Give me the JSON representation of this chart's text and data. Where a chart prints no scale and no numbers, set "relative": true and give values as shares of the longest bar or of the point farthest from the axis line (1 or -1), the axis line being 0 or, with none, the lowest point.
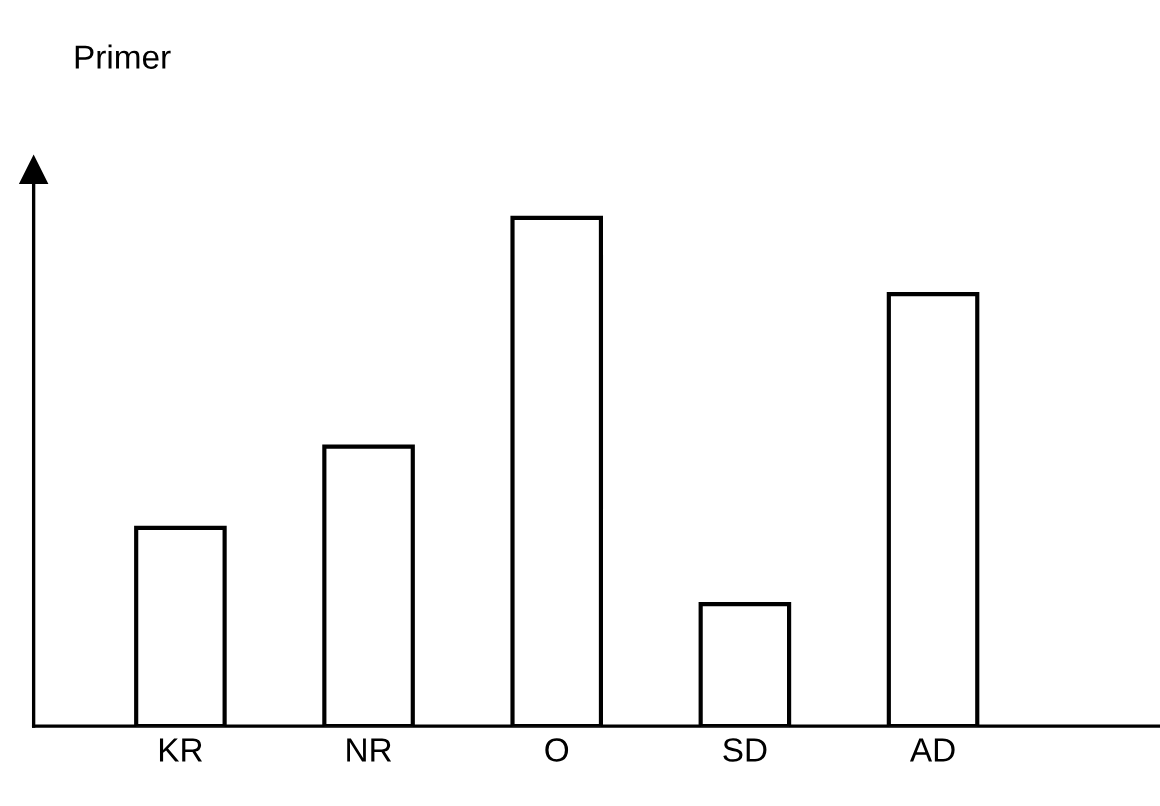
{
  "chart_data": {
    "type": "bar",
    "ylabel": "Primer",
    "relative": true,
    "categories": [
      "KR",
      "NR",
      "O",
      "SD",
      "AD"
    ],
    "values": [
      0.39,
      0.55,
      1,
      0.24,
      0.85
    ],
    "color": "#ffffff",
    "grid": false,
    "legend": false
  }
}
